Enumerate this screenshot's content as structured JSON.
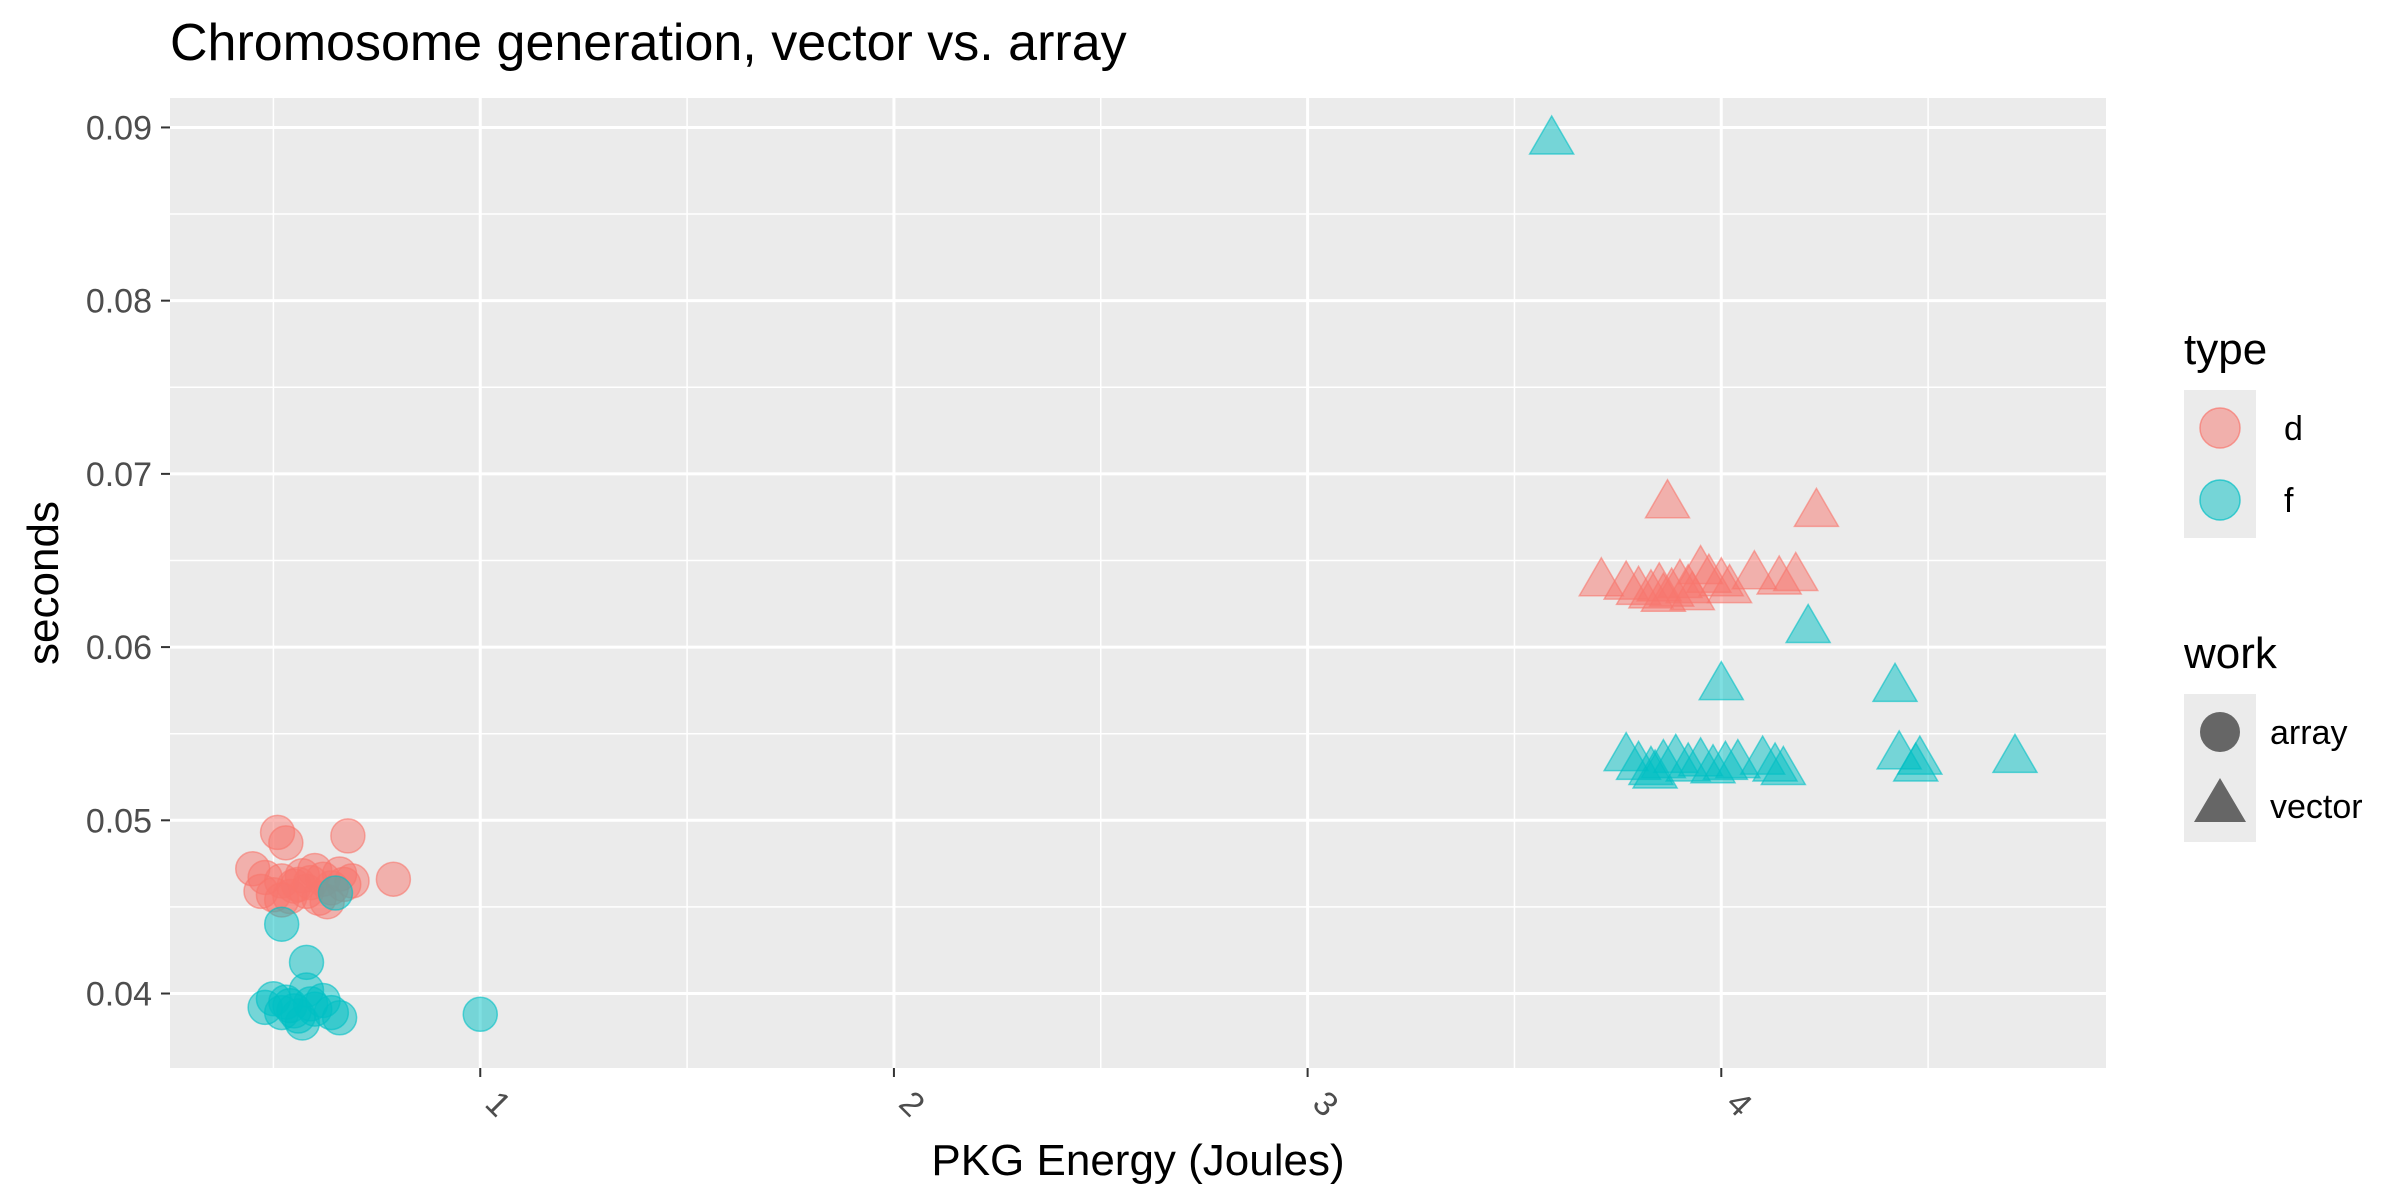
{
  "chart_data": {
    "type": "scatter",
    "title": "Chromosome generation, vector vs. array",
    "xlabel": "PKG Energy (Joules)",
    "ylabel": "seconds",
    "xlim": [
      0.25,
      4.93
    ],
    "ylim": [
      0.0357,
      0.0917
    ],
    "x_ticks": [
      1,
      2,
      3,
      4
    ],
    "x_tick_labels": [
      "1",
      "2",
      "3",
      "4"
    ],
    "y_ticks": [
      0.04,
      0.05,
      0.06,
      0.07,
      0.08,
      0.09
    ],
    "y_tick_labels": [
      "0.04",
      "0.05",
      "0.06",
      "0.07",
      "0.08",
      "0.09"
    ],
    "grid": true,
    "legend_placement": "right",
    "colors": {
      "d": "#F8766D",
      "f": "#00BFC4",
      "shape_key": "#666666",
      "panel": "#EBEBEB",
      "grid": "#FFFFFF"
    },
    "legends": {
      "type": {
        "title": "type",
        "entries": [
          "d",
          "f"
        ]
      },
      "work": {
        "title": "work",
        "entries": [
          "array",
          "vector"
        ]
      }
    },
    "series": [
      {
        "type": "d",
        "work": "array",
        "shape": "circle",
        "points": [
          [
            0.51,
            0.0493
          ],
          [
            0.53,
            0.0487
          ],
          [
            0.68,
            0.0491
          ],
          [
            0.45,
            0.0472
          ],
          [
            0.48,
            0.0467
          ],
          [
            0.52,
            0.0465
          ],
          [
            0.55,
            0.0462
          ],
          [
            0.57,
            0.0468
          ],
          [
            0.6,
            0.0471
          ],
          [
            0.62,
            0.0466
          ],
          [
            0.64,
            0.0461
          ],
          [
            0.66,
            0.0469
          ],
          [
            0.69,
            0.0465
          ],
          [
            0.79,
            0.0466
          ],
          [
            0.47,
            0.0459
          ],
          [
            0.5,
            0.0457
          ],
          [
            0.54,
            0.0456
          ],
          [
            0.58,
            0.0459
          ],
          [
            0.61,
            0.0455
          ],
          [
            0.63,
            0.0453
          ],
          [
            0.56,
            0.0463
          ],
          [
            0.59,
            0.0464
          ],
          [
            0.52,
            0.0454
          ],
          [
            0.67,
            0.0463
          ]
        ]
      },
      {
        "type": "f",
        "work": "array",
        "shape": "circle",
        "points": [
          [
            0.52,
            0.044
          ],
          [
            0.58,
            0.0418
          ],
          [
            0.65,
            0.0458
          ],
          [
            1.0,
            0.0388
          ],
          [
            0.48,
            0.0392
          ],
          [
            0.5,
            0.0397
          ],
          [
            0.52,
            0.0389
          ],
          [
            0.54,
            0.0393
          ],
          [
            0.56,
            0.0387
          ],
          [
            0.58,
            0.0402
          ],
          [
            0.6,
            0.0391
          ],
          [
            0.62,
            0.0396
          ],
          [
            0.64,
            0.0389
          ],
          [
            0.66,
            0.0386
          ],
          [
            0.57,
            0.0383
          ],
          [
            0.55,
            0.039
          ],
          [
            0.53,
            0.0395
          ],
          [
            0.59,
            0.0394
          ]
        ]
      },
      {
        "type": "d",
        "work": "vector",
        "shape": "triangle",
        "points": [
          [
            3.87,
            0.0683
          ],
          [
            4.23,
            0.0678
          ],
          [
            3.71,
            0.0638
          ],
          [
            3.77,
            0.0636
          ],
          [
            3.8,
            0.0633
          ],
          [
            3.83,
            0.0631
          ],
          [
            3.85,
            0.0635
          ],
          [
            3.88,
            0.0632
          ],
          [
            3.9,
            0.0637
          ],
          [
            3.92,
            0.0634
          ],
          [
            3.95,
            0.0645
          ],
          [
            3.97,
            0.064
          ],
          [
            4.0,
            0.0638
          ],
          [
            4.02,
            0.0634
          ],
          [
            4.08,
            0.0642
          ],
          [
            4.14,
            0.0639
          ],
          [
            4.18,
            0.0641
          ],
          [
            3.86,
            0.0629
          ],
          [
            3.93,
            0.063
          ]
        ]
      },
      {
        "type": "f",
        "work": "vector",
        "shape": "triangle",
        "points": [
          [
            3.59,
            0.0893
          ],
          [
            4.21,
            0.0611
          ],
          [
            4.0,
            0.0578
          ],
          [
            4.42,
            0.0577
          ],
          [
            4.71,
            0.0536
          ],
          [
            4.48,
            0.0535
          ],
          [
            4.47,
            0.0531
          ],
          [
            4.43,
            0.0538
          ],
          [
            3.77,
            0.0537
          ],
          [
            3.8,
            0.0532
          ],
          [
            3.83,
            0.0529
          ],
          [
            3.86,
            0.0533
          ],
          [
            3.89,
            0.0536
          ],
          [
            3.92,
            0.0531
          ],
          [
            3.95,
            0.0534
          ],
          [
            3.98,
            0.053
          ],
          [
            4.01,
            0.0532
          ],
          [
            4.04,
            0.0533
          ],
          [
            4.1,
            0.0535
          ],
          [
            4.13,
            0.0531
          ],
          [
            4.15,
            0.0529
          ],
          [
            3.84,
            0.0527
          ]
        ]
      }
    ]
  }
}
